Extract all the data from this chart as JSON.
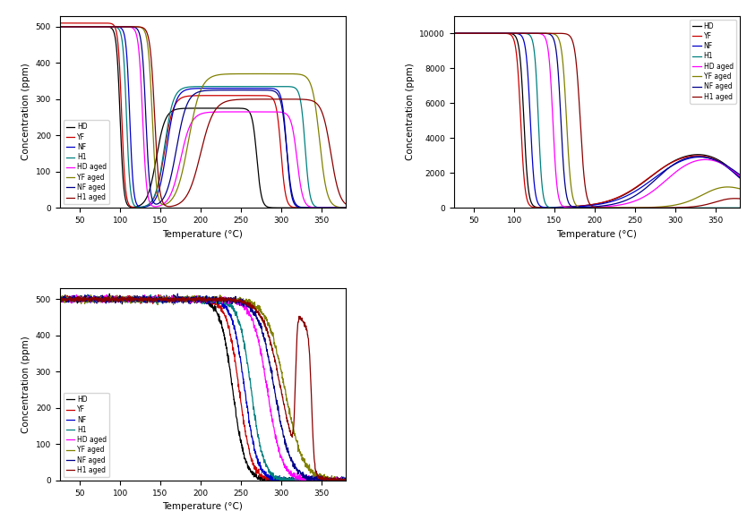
{
  "series_names": [
    "HD",
    "YF",
    "NF",
    "H1",
    "HD aged",
    "YF aged",
    "NF aged",
    "H1 aged"
  ],
  "colors": [
    "#000000",
    "#cc0000",
    "#0000cc",
    "#008080",
    "#ff00ff",
    "#808000",
    "#00008B",
    "#8B0000"
  ],
  "xlabel": "Temperature (°C)",
  "ylabel": "Concentration (ppm)",
  "plot1": {
    "ylim": [
      0,
      530
    ],
    "yticks": [
      0,
      100,
      200,
      300,
      400,
      500
    ],
    "xticks": [
      50,
      100,
      150,
      200,
      250,
      300,
      350
    ]
  },
  "plot2": {
    "ylim": [
      0,
      11000
    ],
    "yticks": [
      0,
      2000,
      4000,
      6000,
      8000,
      10000
    ],
    "xticks": [
      50,
      100,
      150,
      200,
      250,
      300,
      350
    ]
  },
  "plot3": {
    "ylim": [
      0,
      530
    ],
    "yticks": [
      0,
      100,
      200,
      300,
      400,
      500
    ],
    "xticks": [
      50,
      100,
      150,
      200,
      250,
      300,
      350
    ]
  }
}
